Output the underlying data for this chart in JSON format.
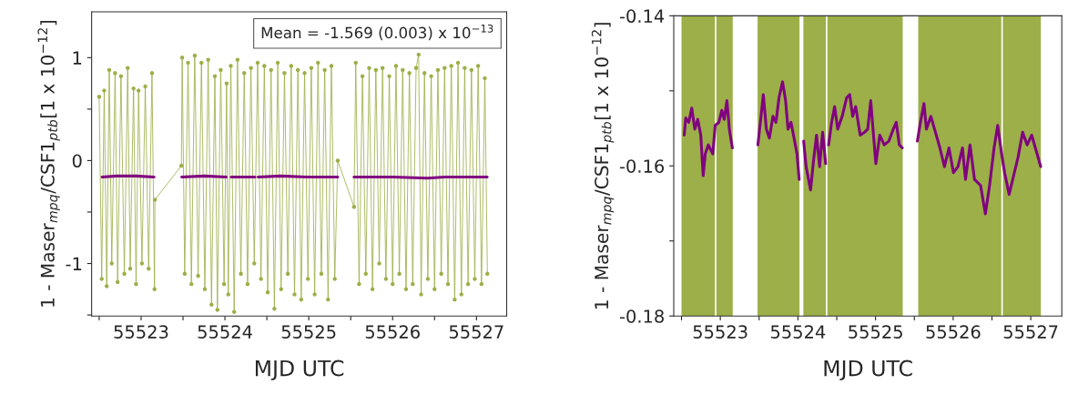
{
  "chart_data": [
    {
      "type": "line",
      "xlabel": "MJD UTC",
      "ylabel": "1 - Maser$_{mpq}$/CSF1$_{ptb}$[1 x 10$^{−12}$]",
      "annotations": [
        "Mean = -1.569 (0.003) x 10$^{−13}$"
      ],
      "xlim": [
        55522.41,
        55527.36
      ],
      "ylim": [
        -1.51,
        1.445
      ],
      "xticks": [
        {
          "value": 55522.5,
          "label": null
        },
        55523,
        {
          "value": 55523.5,
          "label": null
        },
        55524,
        {
          "value": 55524.5,
          "label": null
        },
        55525,
        {
          "value": 55525.5,
          "label": null
        },
        55526,
        {
          "value": 55526.5,
          "label": null
        },
        55527
      ],
      "yticks": [
        {
          "value": -1.5,
          "label": null
        },
        -1,
        {
          "value": -0.5,
          "label": null
        },
        0,
        {
          "value": 0.5,
          "label": null
        },
        1
      ],
      "grid": false,
      "legend": false,
      "series": [
        {
          "color": "#9caf48",
          "marker": "circle",
          "line_style": "solid",
          "x": [
            55522.5,
            55522.53,
            55522.56,
            55522.59,
            55522.62,
            55522.65,
            55522.69,
            55522.72,
            55522.76,
            55522.8,
            55522.84,
            55522.87,
            55522.91,
            55522.94,
            55522.97,
            55523.01,
            55523.05,
            55523.09,
            55523.13,
            55523.16,
            55523.165,
            55523.48,
            55523.49,
            55523.52,
            55523.56,
            55523.6,
            55523.64,
            55523.68,
            55523.72,
            55523.76,
            55523.8,
            55523.84,
            55523.88,
            55523.91,
            55523.95,
            55523.99,
            55524.02,
            55524.04,
            55524.07,
            55524.11,
            55524.15,
            55524.19,
            55524.23,
            55524.27,
            55524.31,
            55524.35,
            55524.39,
            55524.43,
            55524.47,
            55524.51,
            55524.55,
            55524.59,
            55524.63,
            55524.67,
            55524.71,
            55524.75,
            55524.79,
            55524.83,
            55524.87,
            55524.91,
            55524.95,
            55524.99,
            55525.03,
            55525.07,
            55525.11,
            55525.15,
            55525.19,
            55525.23,
            55525.27,
            55525.31,
            55525.345,
            55525.54,
            55525.56,
            55525.6,
            55525.64,
            55525.68,
            55525.72,
            55525.76,
            55525.8,
            55525.84,
            55525.88,
            55525.92,
            55525.96,
            55526.0,
            55526.04,
            55526.08,
            55526.12,
            55526.16,
            55526.2,
            55526.24,
            55526.28,
            55526.31,
            55526.34,
            55526.38,
            55526.42,
            55526.46,
            55526.5,
            55526.54,
            55526.58,
            55526.62,
            55526.66,
            55526.7,
            55526.74,
            55526.78,
            55526.82,
            55526.86,
            55526.9,
            55526.94,
            55526.98,
            55527.02,
            55527.06,
            55527.1,
            55527.13
          ],
          "values": [
            0.62,
            -1.15,
            0.68,
            -1.22,
            0.88,
            -1.0,
            0.85,
            -1.18,
            0.82,
            -1.1,
            0.9,
            -1.05,
            0.7,
            -1.2,
            0.68,
            -1.0,
            0.72,
            -1.05,
            0.85,
            -1.25,
            -0.38,
            -0.05,
            1.0,
            -1.1,
            0.95,
            -1.2,
            1.02,
            -1.12,
            0.95,
            -1.25,
            0.98,
            -1.4,
            0.82,
            -1.45,
            0.88,
            -1.2,
            0.75,
            -1.3,
            0.92,
            -1.47,
            0.98,
            -1.1,
            0.85,
            -1.2,
            0.9,
            -1.0,
            0.95,
            -1.15,
            0.92,
            -1.28,
            0.88,
            -1.44,
            0.95,
            -1.25,
            0.85,
            -1.1,
            0.92,
            -1.3,
            0.88,
            -1.35,
            0.85,
            -1.15,
            0.9,
            -1.3,
            0.95,
            -1.1,
            0.88,
            -1.35,
            0.92,
            -1.15,
            0.0,
            -0.45,
            0.95,
            -1.2,
            0.82,
            -1.1,
            0.9,
            -1.25,
            0.88,
            -1.0,
            0.9,
            -1.15,
            0.82,
            -1.2,
            0.92,
            -1.1,
            0.88,
            -1.25,
            0.85,
            -1.2,
            0.9,
            1.03,
            -1.3,
            0.85,
            -1.15,
            0.82,
            -1.25,
            0.88,
            -1.1,
            0.9,
            -1.2,
            0.92,
            -1.35,
            0.95,
            -1.3,
            0.9,
            -1.2,
            0.88,
            -1.15,
            0.92,
            -1.2,
            0.8,
            -1.1
          ]
        },
        {
          "color": "#800080",
          "marker": "none",
          "line_style": "solid",
          "x": [
            55522.535,
            55522.709,
            55522.934,
            55523.155,
            null,
            55523.484,
            55523.756,
            55524.016,
            null,
            55524.074,
            55524.24,
            55524.357,
            null,
            55524.395,
            55524.667,
            55524.977,
            55525.345,
            null,
            55525.539,
            55526.004,
            55526.415,
            55526.624,
            55527.128
          ],
          "values": [
            -0.16,
            -0.15,
            -0.15,
            -0.16,
            null,
            -0.16,
            -0.15,
            -0.16,
            null,
            -0.16,
            -0.16,
            -0.16,
            null,
            -0.16,
            -0.15,
            -0.16,
            -0.16,
            null,
            -0.16,
            -0.16,
            -0.17,
            -0.16,
            -0.16
          ]
        }
      ]
    },
    {
      "type": "line",
      "xlabel": "MJD UTC",
      "ylabel": "1 - Maser$_{mpq}$/CSF1$_{ptb}$[1 x 10$^{−12}$]",
      "xlim": [
        55522.4,
        55527.4
      ],
      "ylim": [
        -0.18,
        -0.14
      ],
      "xticks": [
        {
          "value": 55522.5,
          "label": null
        },
        55523,
        {
          "value": 55523.5,
          "label": null
        },
        55524,
        {
          "value": 55524.5,
          "label": null
        },
        55525,
        {
          "value": 55525.5,
          "label": null
        },
        55526,
        {
          "value": 55526.5,
          "label": null
        },
        55527
      ],
      "yticks": [
        -0.18,
        {
          "value": -0.17,
          "label": null
        },
        -0.16,
        {
          "value": -0.15,
          "label": null
        },
        -0.14
      ],
      "grid": false,
      "legend": false,
      "bands": [
        {
          "axis": "x",
          "from": 55522.5,
          "to": 55522.93,
          "color": "#9caf48"
        },
        {
          "axis": "x",
          "from": 55522.95,
          "to": 55523.16,
          "color": "#9caf48"
        },
        {
          "axis": "x",
          "from": 55523.48,
          "to": 55524.02,
          "color": "#9caf48"
        },
        {
          "axis": "x",
          "from": 55524.07,
          "to": 55524.36,
          "color": "#9caf48"
        },
        {
          "axis": "x",
          "from": 55524.38,
          "to": 55525.35,
          "color": "#9caf48"
        },
        {
          "axis": "x",
          "from": 55525.55,
          "to": 55526.62,
          "color": "#9caf48"
        },
        {
          "axis": "x",
          "from": 55526.64,
          "to": 55527.13,
          "color": "#9caf48"
        }
      ],
      "series": [
        {
          "color": "#800080",
          "marker": "none",
          "line_style": "solid",
          "x": [
            55522.535,
            55522.554,
            55522.593,
            55522.632,
            55522.671,
            55522.709,
            55522.748,
            55522.779,
            55522.806,
            55522.845,
            55522.903,
            55522.934,
            55522.981,
            55523.019,
            55523.05,
            55523.085,
            55523.116,
            55523.155,
            null,
            55523.484,
            55523.516,
            55523.554,
            55523.593,
            55523.632,
            55523.678,
            55523.717,
            55523.756,
            55523.802,
            55523.841,
            55523.872,
            55523.911,
            55523.95,
            55523.988,
            55524.016,
            null,
            55524.074,
            55524.105,
            55524.163,
            55524.202,
            55524.24,
            55524.279,
            55524.318,
            55524.357,
            null,
            55524.395,
            55524.434,
            55524.473,
            55524.512,
            55524.57,
            55524.628,
            55524.667,
            55524.705,
            55524.744,
            55524.802,
            55524.86,
            55524.899,
            55524.938,
            55524.977,
            55525.004,
            55525.054,
            55525.112,
            55525.171,
            55525.229,
            55525.267,
            55525.306,
            55525.345,
            null,
            55525.539,
            55525.578,
            55525.624,
            55525.655,
            55525.713,
            55525.771,
            55525.829,
            55525.888,
            55525.946,
            55526.004,
            55526.062,
            55526.12,
            55526.159,
            55526.217,
            55526.275,
            55526.353,
            55526.415,
            55526.469,
            55526.527,
            55526.574,
            55526.624,
            55526.663,
            55526.721,
            55526.779,
            55526.837,
            55526.895,
            55526.953,
            55527.012,
            55527.07,
            55527.128
          ],
          "values": [
            -0.1559,
            -0.1536,
            -0.1542,
            -0.1523,
            -0.1551,
            -0.1538,
            -0.1559,
            -0.1613,
            -0.1584,
            -0.1572,
            -0.1584,
            -0.1546,
            -0.1542,
            -0.1526,
            -0.1538,
            -0.1513,
            -0.1551,
            -0.1576,
            null,
            -0.1572,
            -0.1542,
            -0.1505,
            -0.1551,
            -0.1563,
            -0.1534,
            -0.1542,
            -0.1509,
            -0.1488,
            -0.1513,
            -0.1551,
            -0.1542,
            -0.1563,
            -0.1584,
            -0.1618,
            null,
            -0.1567,
            -0.1601,
            -0.1632,
            -0.1592,
            -0.1559,
            -0.1601,
            -0.1555,
            -0.1597,
            null,
            -0.1572,
            -0.1542,
            -0.1521,
            -0.1551,
            -0.1534,
            -0.1509,
            -0.1505,
            -0.1534,
            -0.1521,
            -0.1559,
            -0.1555,
            -0.1551,
            -0.1513,
            -0.1563,
            -0.1597,
            -0.1559,
            -0.1572,
            -0.1567,
            -0.1551,
            -0.1542,
            -0.1572,
            -0.1576,
            null,
            -0.1567,
            -0.1542,
            -0.1517,
            -0.1551,
            -0.1534,
            -0.1555,
            -0.1576,
            -0.1601,
            -0.1576,
            -0.1609,
            -0.1601,
            -0.1576,
            -0.1618,
            -0.1572,
            -0.1618,
            -0.1626,
            -0.1664,
            -0.1626,
            -0.1576,
            -0.1546,
            -0.1584,
            -0.1609,
            -0.1638,
            -0.1613,
            -0.1588,
            -0.1555,
            -0.1572,
            -0.1559,
            -0.158,
            -0.1601
          ]
        }
      ]
    }
  ]
}
